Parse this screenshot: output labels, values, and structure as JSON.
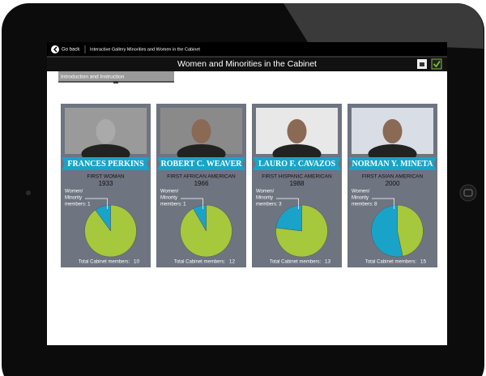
{
  "nav": {
    "back": "Go back",
    "breadcrumb": "Interactive Gallery Minorities and Women in the Cabinet"
  },
  "title": "Women and Minorities in the Cabinet",
  "tab": "Introduction and Instruction",
  "cards": [
    {
      "name": "FRANCES PERKINS",
      "subtitle": "FIRST WOMAN",
      "year": "1933",
      "minority_label": [
        "Women/",
        "Minority",
        "members:"
      ],
      "minority": 1,
      "total_label": "Total Cabinet members:",
      "total": 10
    },
    {
      "name": "ROBERT C. WEAVER",
      "subtitle": "FIRST AFRICAN AMERICAN",
      "year": "1966",
      "minority_label": [
        "Women/",
        "Minority",
        "members:"
      ],
      "minority": 1,
      "total_label": "Total Cabinet members:",
      "total": 12
    },
    {
      "name": "LAURO F. CAVAZOS",
      "subtitle": "FIRST HISPANIC AMERICAN",
      "year": "1988",
      "minority_label": [
        "Women/",
        "Minority",
        "members:"
      ],
      "minority": 3,
      "total_label": "Total Cabinet members:",
      "total": 13
    },
    {
      "name": "NORMAN Y. MINETA",
      "subtitle": "FIRST ASIAN AMERICAN",
      "year": "2000",
      "minority_label": [
        "Women/",
        "Minority",
        "members:"
      ],
      "minority": 8,
      "total_label": "Total Cabinet members:",
      "total": 15
    }
  ]
}
